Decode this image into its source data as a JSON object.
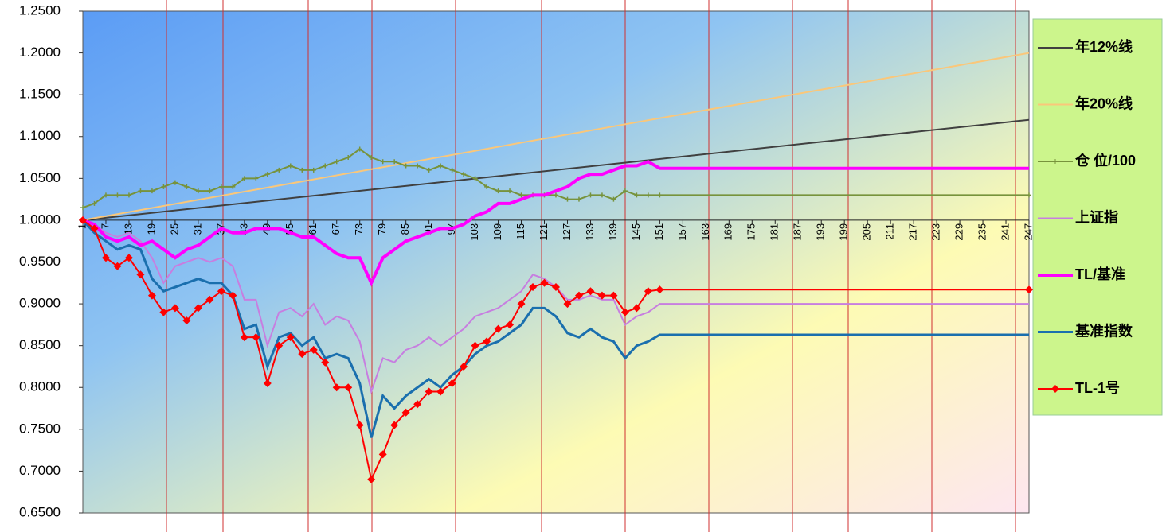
{
  "chart_data": {
    "type": "line",
    "x": [
      1,
      4,
      7,
      10,
      13,
      16,
      19,
      22,
      25,
      28,
      31,
      34,
      37,
      40,
      43,
      46,
      49,
      52,
      55,
      58,
      61,
      64,
      67,
      70,
      73,
      76,
      79,
      82,
      85,
      88,
      91,
      94,
      97,
      100,
      103,
      106,
      109,
      112,
      115,
      118,
      121,
      124,
      127,
      130,
      133,
      136,
      139,
      142,
      145,
      148,
      151,
      247
    ],
    "series": [
      {
        "name": "年12%线",
        "color": "#404040",
        "x": [
          1,
          247
        ],
        "values": [
          1.0,
          1.12
        ]
      },
      {
        "name": "年20%线",
        "color": "#fac77a",
        "x": [
          1,
          247
        ],
        "values": [
          1.0,
          1.2
        ]
      },
      {
        "name": "仓 位/100",
        "color": "#77933c",
        "marker": "plus",
        "values": [
          1.015,
          1.02,
          1.03,
          1.03,
          1.03,
          1.035,
          1.035,
          1.04,
          1.045,
          1.04,
          1.035,
          1.035,
          1.04,
          1.04,
          1.05,
          1.05,
          1.055,
          1.06,
          1.065,
          1.06,
          1.06,
          1.065,
          1.07,
          1.075,
          1.085,
          1.075,
          1.07,
          1.07,
          1.065,
          1.065,
          1.06,
          1.065,
          1.06,
          1.055,
          1.05,
          1.04,
          1.035,
          1.035,
          1.03,
          1.03,
          1.03,
          1.03,
          1.025,
          1.025,
          1.03,
          1.03,
          1.025,
          1.035,
          1.03,
          1.03,
          1.03,
          1.03
        ]
      },
      {
        "name": "上证指",
        "color": "#c77ee0",
        "values": [
          1.0,
          0.995,
          0.985,
          0.98,
          0.985,
          0.975,
          0.955,
          0.925,
          0.945,
          0.95,
          0.955,
          0.95,
          0.955,
          0.945,
          0.905,
          0.905,
          0.85,
          0.89,
          0.895,
          0.885,
          0.9,
          0.875,
          0.885,
          0.88,
          0.855,
          0.795,
          0.835,
          0.83,
          0.845,
          0.85,
          0.86,
          0.85,
          0.86,
          0.87,
          0.885,
          0.89,
          0.895,
          0.905,
          0.915,
          0.935,
          0.93,
          0.92,
          0.905,
          0.905,
          0.91,
          0.905,
          0.905,
          0.875,
          0.885,
          0.89,
          0.9,
          0.9
        ]
      },
      {
        "name": "TL/基准",
        "color": "#ff00ff",
        "width": 4,
        "values": [
          1.0,
          0.995,
          0.98,
          0.975,
          0.98,
          0.97,
          0.975,
          0.965,
          0.955,
          0.965,
          0.97,
          0.98,
          0.99,
          0.985,
          0.985,
          0.99,
          0.99,
          0.99,
          0.985,
          0.98,
          0.98,
          0.97,
          0.96,
          0.955,
          0.955,
          0.925,
          0.955,
          0.965,
          0.975,
          0.98,
          0.985,
          0.99,
          0.99,
          0.995,
          1.005,
          1.01,
          1.02,
          1.02,
          1.025,
          1.03,
          1.03,
          1.035,
          1.04,
          1.05,
          1.055,
          1.055,
          1.06,
          1.065,
          1.065,
          1.07,
          1.062,
          1.062
        ]
      },
      {
        "name": "基准指数",
        "color": "#1a6fae",
        "width": 3,
        "values": [
          1.0,
          0.985,
          0.975,
          0.965,
          0.97,
          0.965,
          0.93,
          0.915,
          0.92,
          0.925,
          0.93,
          0.925,
          0.925,
          0.91,
          0.87,
          0.875,
          0.825,
          0.86,
          0.865,
          0.85,
          0.86,
          0.835,
          0.84,
          0.835,
          0.805,
          0.74,
          0.79,
          0.775,
          0.79,
          0.8,
          0.81,
          0.8,
          0.815,
          0.825,
          0.84,
          0.85,
          0.855,
          0.865,
          0.875,
          0.895,
          0.895,
          0.885,
          0.865,
          0.86,
          0.87,
          0.86,
          0.855,
          0.835,
          0.85,
          0.855,
          0.863,
          0.863
        ]
      },
      {
        "name": "TL-1号",
        "color": "#ff0000",
        "width": 2,
        "marker": "diamond",
        "values": [
          1.0,
          0.99,
          0.955,
          0.945,
          0.955,
          0.935,
          0.91,
          0.89,
          0.895,
          0.88,
          0.895,
          0.905,
          0.915,
          0.91,
          0.86,
          0.86,
          0.805,
          0.85,
          0.86,
          0.84,
          0.845,
          0.83,
          0.8,
          0.8,
          0.755,
          0.69,
          0.72,
          0.755,
          0.77,
          0.78,
          0.795,
          0.795,
          0.805,
          0.825,
          0.85,
          0.855,
          0.87,
          0.875,
          0.9,
          0.92,
          0.925,
          0.92,
          0.9,
          0.91,
          0.915,
          0.91,
          0.91,
          0.89,
          0.895,
          0.915,
          0.917,
          0.917
        ]
      }
    ],
    "xlim": [
      1,
      247
    ],
    "xticks": [
      1,
      7,
      13,
      19,
      25,
      31,
      37,
      43,
      49,
      55,
      61,
      67,
      73,
      79,
      85,
      91,
      97,
      103,
      109,
      115,
      121,
      127,
      133,
      139,
      145,
      151,
      157,
      163,
      169,
      175,
      181,
      187,
      193,
      199,
      205,
      211,
      217,
      223,
      229,
      235,
      241,
      247
    ],
    "xaxis_crosses": 1.0,
    "ylim": [
      0.65,
      1.25
    ],
    "yticks": [
      {
        "value": 0.65,
        "label": "0.6500"
      },
      {
        "value": 0.7,
        "label": "0.7000"
      },
      {
        "value": 0.75,
        "label": "0.7500"
      },
      {
        "value": 0.8,
        "label": "0.8000"
      },
      {
        "value": 0.85,
        "label": "0.8500"
      },
      {
        "value": 0.9,
        "label": "0.9000"
      },
      {
        "value": 0.95,
        "label": "0.9500"
      },
      {
        "value": 1.0,
        "label": "1.0000"
      },
      {
        "value": 1.05,
        "label": "1.0500"
      },
      {
        "value": 1.1,
        "label": "1.1000"
      },
      {
        "value": 1.15,
        "label": "1.1500"
      },
      {
        "value": 1.2,
        "label": "1.2000"
      },
      {
        "value": 1.25,
        "label": "1.2500"
      }
    ],
    "grid": true,
    "legend": "right"
  }
}
